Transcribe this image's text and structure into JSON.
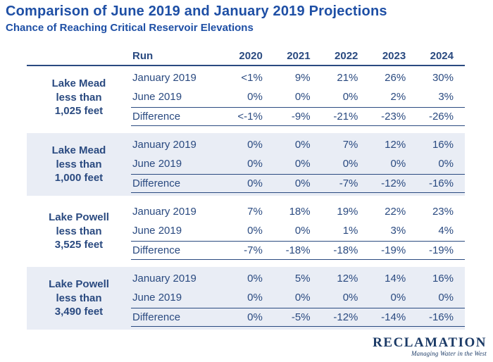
{
  "colors": {
    "title_blue": "#1E4FA5",
    "table_navy": "#2A4A80",
    "band_fill": "#E9EDF5",
    "footer_navy": "#1B3A66"
  },
  "footer": {
    "wordmark": "RECLAMATION",
    "tagline": "Managing Water in the West"
  },
  "chart_data": {
    "type": "table",
    "title": "Comparison of June 2019 and January 2019 Projections",
    "subtitle": "Chance of Reaching Critical Reservoir Elevations",
    "columns": [
      "Run",
      "2020",
      "2021",
      "2022",
      "2023",
      "2024"
    ],
    "row_groups": [
      {
        "label": "Lake Mead less than 1,025 feet",
        "label_lines": "Lake Mead\nless than\n1,025 feet",
        "shaded": false,
        "rows": [
          {
            "run": "January 2019",
            "values": [
              "<1%",
              "9%",
              "21%",
              "26%",
              "30%"
            ]
          },
          {
            "run": "June 2019",
            "values": [
              "0%",
              "0%",
              "0%",
              "2%",
              "3%"
            ]
          },
          {
            "run": "Difference",
            "values": [
              "<-1%",
              "-9%",
              "-21%",
              "-23%",
              "-26%"
            ]
          }
        ]
      },
      {
        "label": "Lake Mead less than 1,000 feet",
        "label_lines": "Lake Mead\nless than\n1,000 feet",
        "shaded": true,
        "rows": [
          {
            "run": "January 2019",
            "values": [
              "0%",
              "0%",
              "7%",
              "12%",
              "16%"
            ]
          },
          {
            "run": "June 2019",
            "values": [
              "0%",
              "0%",
              "0%",
              "0%",
              "0%"
            ]
          },
          {
            "run": "Difference",
            "values": [
              "0%",
              "0%",
              "-7%",
              "-12%",
              "-16%"
            ]
          }
        ]
      },
      {
        "label": "Lake Powell less than 3,525 feet",
        "label_lines": "Lake Powell\nless than\n3,525 feet",
        "shaded": false,
        "rows": [
          {
            "run": "January 2019",
            "values": [
              "7%",
              "18%",
              "19%",
              "22%",
              "23%"
            ]
          },
          {
            "run": "June 2019",
            "values": [
              "0%",
              "0%",
              "1%",
              "3%",
              "4%"
            ]
          },
          {
            "run": "Difference",
            "values": [
              "-7%",
              "-18%",
              "-18%",
              "-19%",
              "-19%"
            ]
          }
        ]
      },
      {
        "label": "Lake Powell less than 3,490 feet",
        "label_lines": "Lake Powell\nless than\n3,490 feet",
        "shaded": true,
        "rows": [
          {
            "run": "January 2019",
            "values": [
              "0%",
              "5%",
              "12%",
              "14%",
              "16%"
            ]
          },
          {
            "run": "June 2019",
            "values": [
              "0%",
              "0%",
              "0%",
              "0%",
              "0%"
            ]
          },
          {
            "run": "Difference",
            "values": [
              "0%",
              "-5%",
              "-12%",
              "-14%",
              "-16%"
            ]
          }
        ]
      }
    ]
  }
}
